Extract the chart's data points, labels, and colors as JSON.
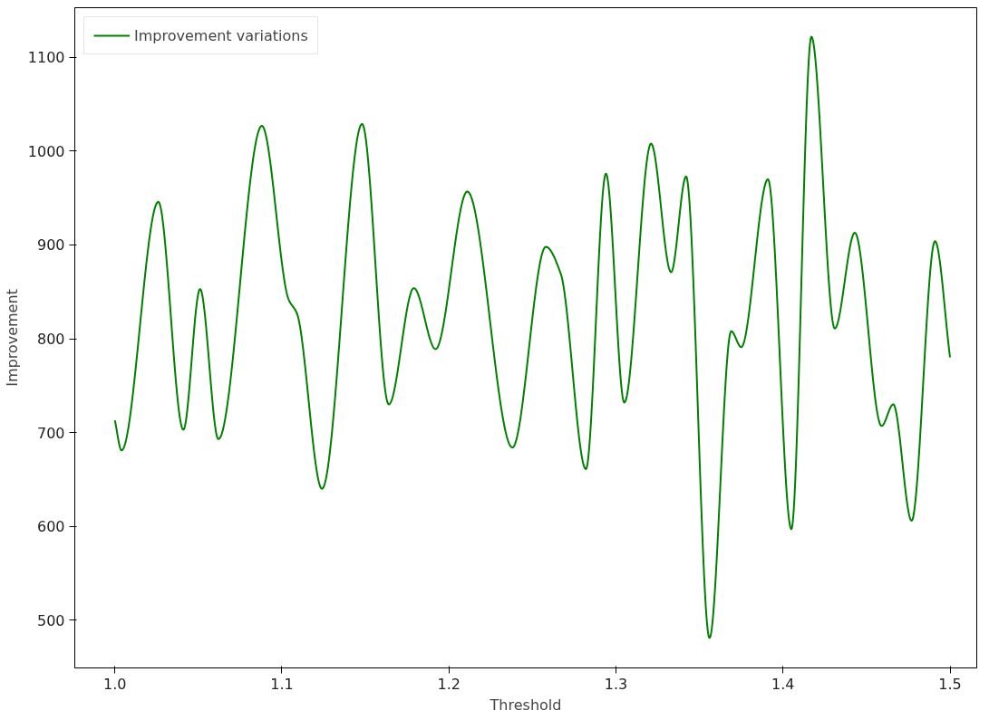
{
  "chart_data": {
    "type": "line",
    "xlabel": "Threshold",
    "ylabel": "Improvement",
    "x": [
      1.0,
      1.004,
      1.026,
      1.041,
      1.051,
      1.062,
      1.088,
      1.104,
      1.109,
      1.124,
      1.148,
      1.164,
      1.179,
      1.192,
      1.211,
      1.238,
      1.258,
      1.267,
      1.282,
      1.294,
      1.305,
      1.321,
      1.333,
      1.342,
      1.356,
      1.369,
      1.375,
      1.391,
      1.405,
      1.417,
      1.431,
      1.443,
      1.459,
      1.466,
      1.477,
      1.491,
      1.5
    ],
    "series": [
      {
        "name": "Improvement variations",
        "color": "#008000",
        "values": [
          713,
          681,
          946,
          703,
          853,
          693,
          1027,
          842,
          827,
          640,
          1029,
          730,
          854,
          789,
          957,
          684,
          898,
          869,
          661,
          976,
          732,
          1008,
          871,
          973,
          481,
          808,
          791,
          970,
          597,
          1122,
          811,
          913,
          707,
          730,
          606,
          904,
          780
        ]
      }
    ],
    "xlim": [
      0.976,
      1.516
    ],
    "ylim": [
      449,
      1153
    ],
    "xticks": [
      {
        "value": 1.0,
        "label": "1.0"
      },
      {
        "value": 1.1,
        "label": "1.1"
      },
      {
        "value": 1.2,
        "label": "1.2"
      },
      {
        "value": 1.3,
        "label": "1.3"
      },
      {
        "value": 1.4,
        "label": "1.4"
      },
      {
        "value": 1.5,
        "label": "1.5"
      }
    ],
    "yticks": [
      500,
      600,
      700,
      800,
      900,
      1000,
      1100
    ],
    "legend": "top left",
    "grid": false,
    "line_style": "solid"
  }
}
